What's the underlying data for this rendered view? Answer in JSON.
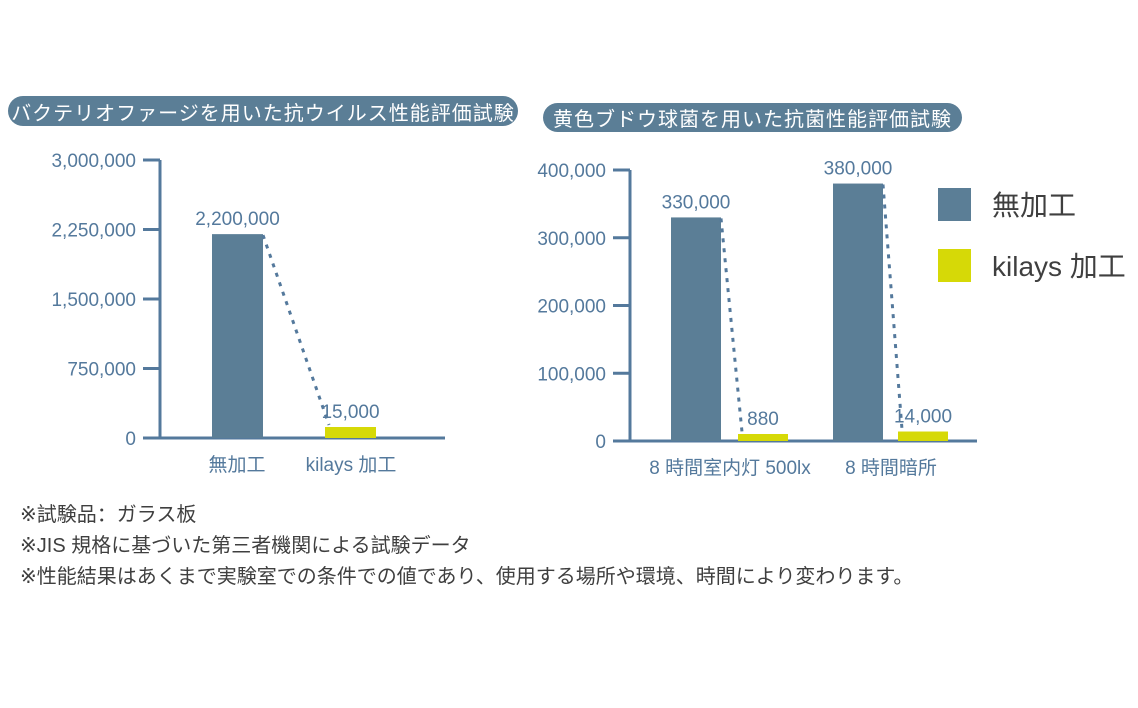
{
  "colors": {
    "bar_blue": "#5b7e96",
    "bar_yellow": "#d6d907",
    "axis_blue": "#54799c",
    "pill_bg": "#5b7e96",
    "pill_text": "#ffffff",
    "note_text": "#3f3f3f"
  },
  "chart_data": [
    {
      "type": "bar",
      "title": "バクテリオファージを用いた抗ウイルス性能評価試験",
      "xlabel": "",
      "ylabel": "",
      "ylim": [
        0,
        3000000
      ],
      "yticks": [
        0,
        750000,
        1500000,
        2250000,
        3000000
      ],
      "ytick_labels": [
        "0",
        "750,000",
        "1,500,000",
        "2,250,000",
        "3,000,000"
      ],
      "grid": "off",
      "categories": [
        "無加工",
        "kilays 加工"
      ],
      "values": [
        2200000,
        15000
      ],
      "value_labels": [
        "2,200,000",
        "15,000"
      ],
      "bar_colors": [
        "#5b7e96",
        "#d6d907"
      ],
      "annotation": "dashed connector from untreated bar top to kilays bar top"
    },
    {
      "type": "bar",
      "title": "黄色ブドウ球菌を用いた抗菌性能評価試験",
      "xlabel": "",
      "ylabel": "",
      "ylim": [
        0,
        400000
      ],
      "yticks": [
        0,
        100000,
        200000,
        300000,
        400000
      ],
      "ytick_labels": [
        "0",
        "100,000",
        "200,000",
        "300,000",
        "400,000"
      ],
      "grid": "off",
      "categories": [
        "8 時間室内灯 500lx",
        "8 時間暗所"
      ],
      "series": [
        {
          "name": "無加工",
          "color": "#5b7e96",
          "values": [
            330000,
            380000
          ],
          "value_labels": [
            "330,000",
            "380,000"
          ]
        },
        {
          "name": "kilays 加工",
          "color": "#d6d907",
          "values": [
            880,
            14000
          ],
          "value_labels": [
            "880",
            "14,000"
          ]
        }
      ],
      "legend_position": "right",
      "annotation": "dashed connectors from each untreated bar top to kilays bar top"
    }
  ],
  "legend": {
    "items": [
      {
        "label": "無加工",
        "color": "#5b7e96"
      },
      {
        "label": "kilays 加工",
        "color": "#d6d907"
      }
    ]
  },
  "footnotes": [
    "※試験品：ガラス板",
    "※JIS 規格に基づいた第三者機関による試験データ",
    "※性能結果はあくまで実験室での条件での値であり、使用する場所や環境、時間により変わります。"
  ]
}
